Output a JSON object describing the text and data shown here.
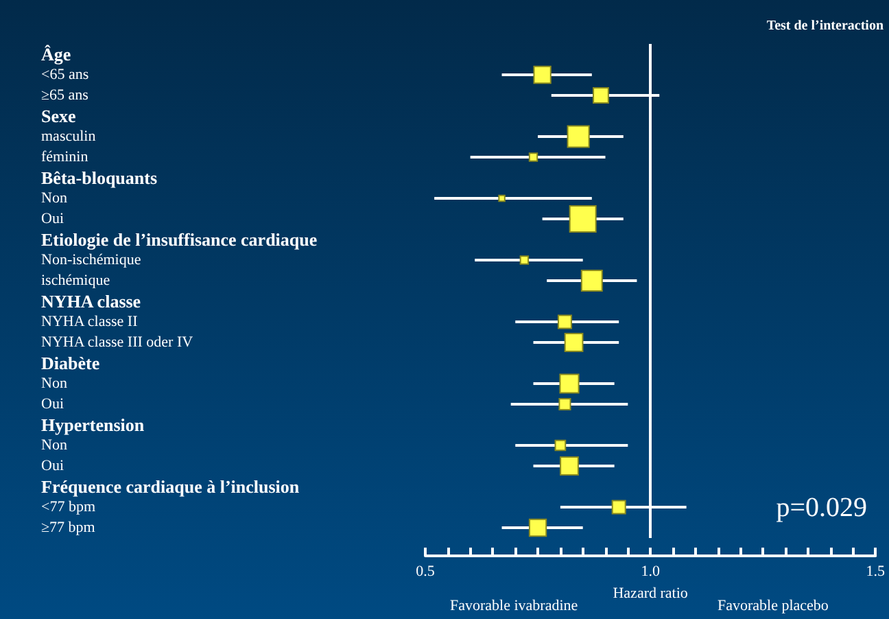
{
  "chart_data": {
    "type": "bubble",
    "orientation": "horizontal",
    "marker": "square",
    "xlabel": "Hazard ratio",
    "categories": [
      "Âge",
      "<65 ans",
      "≥65 ans",
      "Sexe",
      "masculin",
      "féminin",
      "Bêta-bloquants",
      "Non",
      "Oui",
      "Etiologie de l’insuffisance cardiaque",
      "Non-ischémique",
      "ischémique",
      "NYHA classe",
      "NYHA classe II",
      "NYHA classe III oder IV",
      "Diabète",
      "Non",
      "Oui",
      "Hypertension",
      "Non",
      "Oui",
      "Fréquence cardiaque à l’inclusion",
      "<77 bpm",
      "≥77 bpm"
    ],
    "series": [
      {
        "color": "#ffff4d",
        "values": [
          null,
          0.76,
          0.89,
          null,
          0.84,
          0.74,
          null,
          0.67,
          0.85,
          null,
          0.72,
          0.87,
          null,
          0.81,
          0.83,
          null,
          0.82,
          0.81,
          null,
          0.8,
          0.82,
          null,
          0.93,
          0.75
        ],
        "sizes": [
          null,
          0.41,
          0.33,
          null,
          0.67,
          0.09,
          null,
          0.05,
          1,
          null,
          0.09,
          0.62,
          null,
          0.25,
          0.46,
          null,
          0.51,
          0.18,
          null,
          0.15,
          0.46,
          null,
          0.25,
          0.41
        ],
        "errors": [
          null,
          [
            0.67,
            0.87
          ],
          [
            0.78,
            1.02
          ],
          null,
          [
            0.75,
            0.94
          ],
          [
            0.6,
            0.9
          ],
          null,
          [
            0.52,
            0.87
          ],
          [
            0.76,
            0.94
          ],
          null,
          [
            0.61,
            0.85
          ],
          [
            0.77,
            0.97
          ],
          null,
          [
            0.7,
            0.93
          ],
          [
            0.74,
            0.93
          ],
          null,
          [
            0.74,
            0.92
          ],
          [
            0.69,
            0.95
          ],
          null,
          [
            0.7,
            0.95
          ],
          [
            0.74,
            0.92
          ],
          null,
          [
            0.8,
            1.08
          ],
          [
            0.67,
            0.85
          ]
        ]
      }
    ],
    "xlim": [
      0.5,
      1.5
    ],
    "xticks": [
      0.5,
      {
        "value": 0.55,
        "label": null
      },
      {
        "value": 0.6,
        "label": null
      },
      {
        "value": 0.65,
        "label": null
      },
      {
        "value": 0.7,
        "label": null
      },
      {
        "value": 0.75,
        "label": null
      },
      {
        "value": 0.8,
        "label": null
      },
      {
        "value": 0.85,
        "label": null
      },
      {
        "value": 0.9,
        "label": null
      },
      {
        "value": 0.95,
        "label": null
      },
      {
        "value": 1,
        "label": "1.0"
      },
      {
        "value": 1.05,
        "label": null
      },
      {
        "value": 1.1,
        "label": null
      },
      {
        "value": 1.15,
        "label": null
      },
      {
        "value": 1.2,
        "label": null
      },
      {
        "value": 1.25,
        "label": null
      },
      {
        "value": 1.3,
        "label": null
      },
      {
        "value": 1.35,
        "label": null
      },
      {
        "value": 1.4,
        "label": null
      },
      {
        "value": 1.45,
        "label": null
      },
      1.5
    ],
    "ref_lines": [
      {
        "axis": "x",
        "value": 1,
        "label": null,
        "color": "#ffffff"
      }
    ],
    "annotations": [
      "Test de l’interaction",
      "p=0.029",
      "Favorable ivabradine",
      "Favorable placebo"
    ],
    "grid": false
  }
}
